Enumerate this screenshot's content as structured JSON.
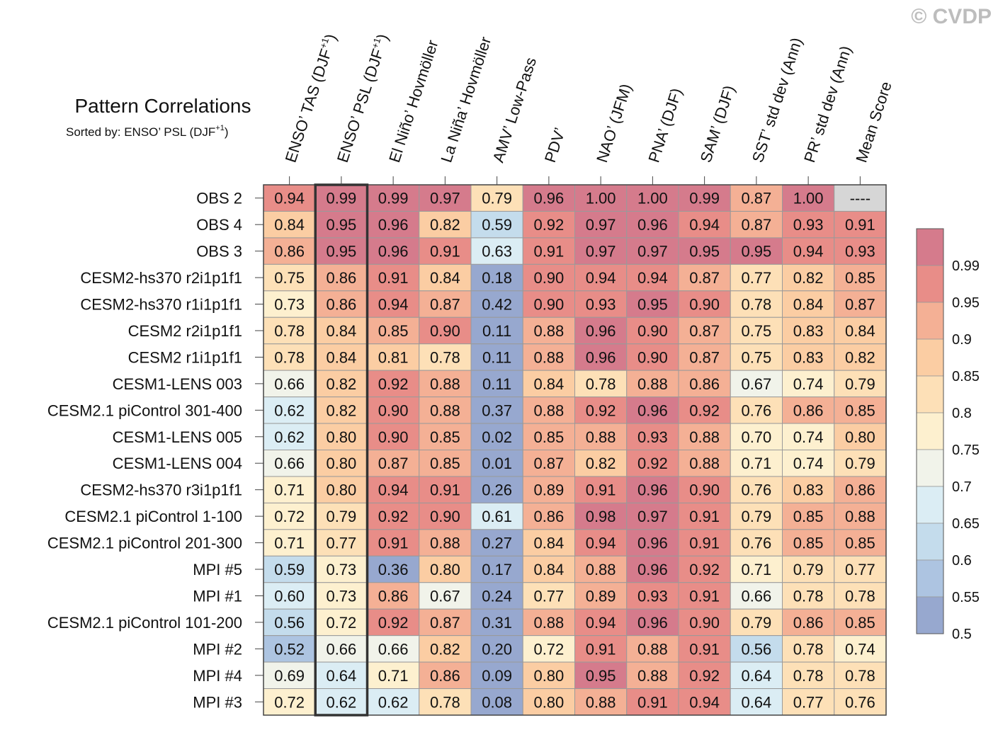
{
  "watermark": "© CVDP",
  "chart_data": {
    "type": "heatmap",
    "title": "Pattern Correlations",
    "subtitle_text": "Sorted by: ENSO’ PSL (DJF",
    "subtitle_sup": "+1",
    "subtitle_close": ")",
    "columns": [
      {
        "text": "ENSO’ TAS (DJF",
        "sup": "+1",
        "close": ")"
      },
      {
        "text": "ENSO’ PSL (DJF",
        "sup": "+1",
        "close": ")"
      },
      {
        "text": "El Niño’ Hovmöller",
        "sup": "",
        "close": ""
      },
      {
        "text": "La Niña’ Hovmöller",
        "sup": "",
        "close": ""
      },
      {
        "text": "AMV’ Low-Pass",
        "sup": "",
        "close": ""
      },
      {
        "text": "PDV’",
        "sup": "",
        "close": ""
      },
      {
        "text": "NAO’ (JFM)",
        "sup": "",
        "close": ""
      },
      {
        "text": "PNA’ (DJF)",
        "sup": "",
        "close": ""
      },
      {
        "text": "SAM’ (DJF)",
        "sup": "",
        "close": ""
      },
      {
        "text": "SST’ std dev (Ann)",
        "sup": "",
        "close": ""
      },
      {
        "text": "PR’ std dev (Ann)",
        "sup": "",
        "close": ""
      },
      {
        "text": "Mean Score",
        "sup": "",
        "close": ""
      }
    ],
    "rows": [
      "OBS 2",
      "OBS 4",
      "OBS 3",
      "CESM2-hs370 r2i1p1f1",
      "CESM2-hs370 r1i1p1f1",
      "CESM2 r2i1p1f1",
      "CESM2 r1i1p1f1",
      "CESM1-LENS 003",
      "CESM2.1 piControl 301-400",
      "CESM1-LENS 005",
      "CESM1-LENS 004",
      "CESM2-hs370 r3i1p1f1",
      "CESM2.1 piControl 1-100",
      "CESM2.1 piControl 201-300",
      "MPI #5",
      "MPI #1",
      "CESM2.1 piControl 101-200",
      "MPI #2",
      "MPI #4",
      "MPI #3"
    ],
    "values": [
      [
        "0.94",
        "0.99",
        "0.99",
        "0.97",
        "0.79",
        "0.96",
        "1.00",
        "1.00",
        "0.99",
        "0.87",
        "1.00",
        "----"
      ],
      [
        "0.84",
        "0.95",
        "0.96",
        "0.82",
        "0.59",
        "0.92",
        "0.97",
        "0.96",
        "0.94",
        "0.87",
        "0.93",
        "0.91"
      ],
      [
        "0.86",
        "0.95",
        "0.96",
        "0.91",
        "0.63",
        "0.91",
        "0.97",
        "0.97",
        "0.95",
        "0.95",
        "0.94",
        "0.93"
      ],
      [
        "0.75",
        "0.86",
        "0.91",
        "0.84",
        "0.18",
        "0.90",
        "0.94",
        "0.94",
        "0.87",
        "0.77",
        "0.82",
        "0.85"
      ],
      [
        "0.73",
        "0.86",
        "0.94",
        "0.87",
        "0.42",
        "0.90",
        "0.93",
        "0.95",
        "0.90",
        "0.78",
        "0.84",
        "0.87"
      ],
      [
        "0.78",
        "0.84",
        "0.85",
        "0.90",
        "0.11",
        "0.88",
        "0.96",
        "0.90",
        "0.87",
        "0.75",
        "0.83",
        "0.84"
      ],
      [
        "0.78",
        "0.84",
        "0.81",
        "0.78",
        "0.11",
        "0.88",
        "0.96",
        "0.90",
        "0.87",
        "0.75",
        "0.83",
        "0.82"
      ],
      [
        "0.66",
        "0.82",
        "0.92",
        "0.88",
        "0.11",
        "0.84",
        "0.78",
        "0.88",
        "0.86",
        "0.67",
        "0.74",
        "0.79"
      ],
      [
        "0.62",
        "0.82",
        "0.90",
        "0.88",
        "0.37",
        "0.88",
        "0.92",
        "0.96",
        "0.92",
        "0.76",
        "0.86",
        "0.85"
      ],
      [
        "0.62",
        "0.80",
        "0.90",
        "0.85",
        "0.02",
        "0.85",
        "0.88",
        "0.93",
        "0.88",
        "0.70",
        "0.74",
        "0.80"
      ],
      [
        "0.66",
        "0.80",
        "0.87",
        "0.85",
        "0.01",
        "0.87",
        "0.82",
        "0.92",
        "0.88",
        "0.71",
        "0.74",
        "0.79"
      ],
      [
        "0.71",
        "0.80",
        "0.94",
        "0.91",
        "0.26",
        "0.89",
        "0.91",
        "0.96",
        "0.90",
        "0.76",
        "0.83",
        "0.86"
      ],
      [
        "0.72",
        "0.79",
        "0.92",
        "0.90",
        "0.61",
        "0.86",
        "0.98",
        "0.97",
        "0.91",
        "0.79",
        "0.85",
        "0.88"
      ],
      [
        "0.71",
        "0.77",
        "0.91",
        "0.88",
        "0.27",
        "0.84",
        "0.94",
        "0.96",
        "0.91",
        "0.76",
        "0.85",
        "0.85"
      ],
      [
        "0.59",
        "0.73",
        "0.36",
        "0.80",
        "0.17",
        "0.84",
        "0.88",
        "0.96",
        "0.92",
        "0.71",
        "0.79",
        "0.77"
      ],
      [
        "0.60",
        "0.73",
        "0.86",
        "0.67",
        "0.24",
        "0.77",
        "0.89",
        "0.93",
        "0.91",
        "0.66",
        "0.78",
        "0.78"
      ],
      [
        "0.56",
        "0.72",
        "0.92",
        "0.87",
        "0.31",
        "0.88",
        "0.94",
        "0.96",
        "0.90",
        "0.79",
        "0.86",
        "0.85"
      ],
      [
        "0.52",
        "0.66",
        "0.66",
        "0.82",
        "0.20",
        "0.72",
        "0.91",
        "0.88",
        "0.91",
        "0.56",
        "0.78",
        "0.74"
      ],
      [
        "0.69",
        "0.64",
        "0.71",
        "0.86",
        "0.09",
        "0.80",
        "0.95",
        "0.88",
        "0.92",
        "0.64",
        "0.78",
        "0.78"
      ],
      [
        "0.72",
        "0.62",
        "0.62",
        "0.78",
        "0.08",
        "0.80",
        "0.88",
        "0.91",
        "0.94",
        "0.64",
        "0.77",
        "0.76"
      ]
    ],
    "highlight_column_index": 1,
    "missing_value_color": "#d6d6d6",
    "colorbar": {
      "labels": [
        "0.99",
        "0.95",
        "0.9",
        "0.85",
        "0.8",
        "0.75",
        "0.7",
        "0.65",
        "0.6",
        "0.55",
        "0.5"
      ],
      "thresholds": [
        0.5,
        0.55,
        0.6,
        0.65,
        0.7,
        0.75,
        0.8,
        0.85,
        0.9,
        0.95,
        0.99
      ],
      "colors": [
        "#97a8cf",
        "#adc4e1",
        "#c4dcec",
        "#dbedf4",
        "#f1f3ea",
        "#fdf0cf",
        "#fde0b7",
        "#fbcda3",
        "#f4b095",
        "#e88d88",
        "#d57b8c"
      ]
    }
  }
}
